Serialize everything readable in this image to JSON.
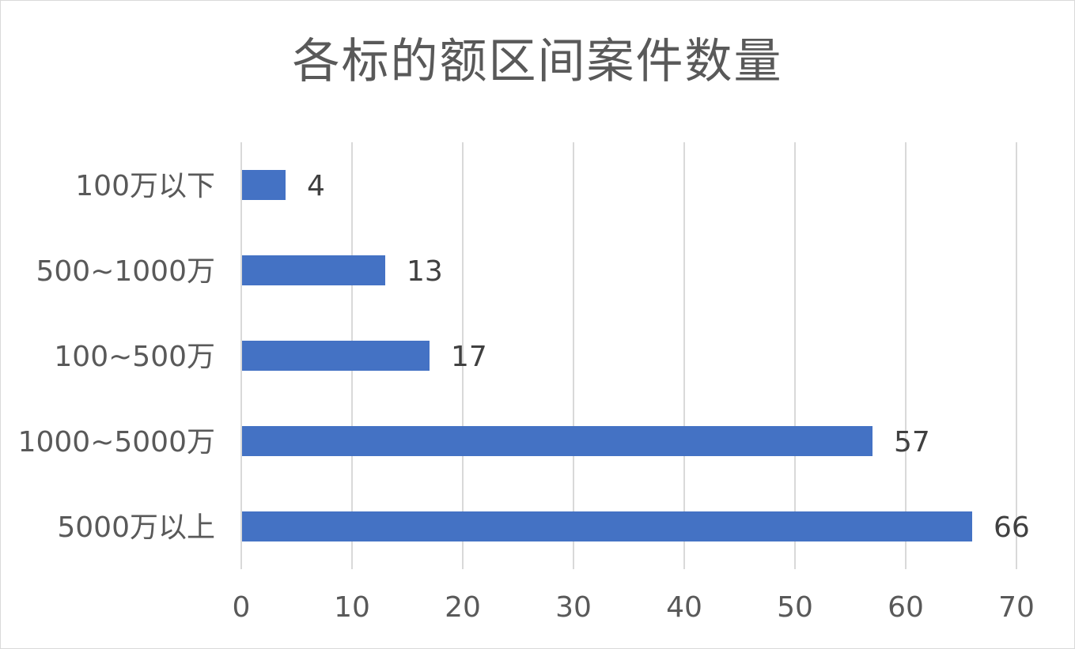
{
  "chart_data": {
    "type": "bar",
    "orientation": "horizontal",
    "title": "各标的额区间案件数量",
    "categories": [
      "100万以下",
      "500~1000万",
      "100~500万",
      "1000~5000万",
      "5000万以上"
    ],
    "values": [
      4,
      13,
      17,
      57,
      66
    ],
    "xlim": [
      0,
      70
    ],
    "xticks": [
      "0",
      "10",
      "20",
      "30",
      "40",
      "50",
      "60",
      "70"
    ],
    "grid": "vertical",
    "legend": "none",
    "colors": {
      "bar": "#4472C4",
      "grid": "#d9d9d9"
    }
  }
}
